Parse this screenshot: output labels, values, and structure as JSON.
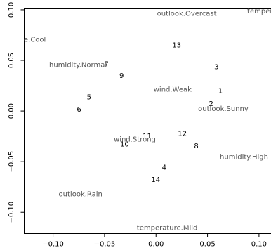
{
  "chart_data": {
    "type": "scatter",
    "xlim": [
      -0.128,
      0.112
    ],
    "ylim": [
      -0.121,
      0.101
    ],
    "x_ticks": [
      -0.1,
      -0.05,
      0.0,
      0.05,
      0.1
    ],
    "x_tick_labels": [
      "−0.10",
      "−0.05",
      "0.00",
      "0.05",
      "0.10"
    ],
    "y_ticks": [
      -0.1,
      -0.05,
      0.0,
      0.05,
      0.1
    ],
    "y_tick_labels": [
      "−0.10",
      "−0.05",
      "0.00",
      "0.05",
      "0.10"
    ],
    "grid": false,
    "series": [
      {
        "points": [
          {
            "label": "1",
            "x": 0.0625,
            "y": 0.0198
          },
          {
            "label": "2",
            "x": 0.0535,
            "y": 0.0071
          },
          {
            "label": "3",
            "x": 0.0587,
            "y": 0.0434
          },
          {
            "label": "4",
            "x": 0.0079,
            "y": -0.0557
          },
          {
            "label": "5",
            "x": -0.0651,
            "y": 0.0137
          },
          {
            "label": "6",
            "x": -0.0748,
            "y": 0.0014
          },
          {
            "label": "7",
            "x": -0.0482,
            "y": 0.0462
          },
          {
            "label": "8",
            "x": 0.0391,
            "y": -0.0347
          },
          {
            "label": "9",
            "x": -0.0334,
            "y": 0.0349
          },
          {
            "label": "10",
            "x": -0.0306,
            "y": -0.0329
          },
          {
            "label": "11",
            "x": -0.0087,
            "y": -0.0249
          },
          {
            "label": "12",
            "x": 0.0256,
            "y": -0.0226
          },
          {
            "label": "13",
            "x": 0.0201,
            "y": 0.0648
          },
          {
            "label": "14",
            "x": -0.0003,
            "y": -0.068
          }
        ]
      },
      {
        "points": [
          {
            "label": "outlook.Overcast",
            "x": 0.0299,
            "y": 0.0963
          },
          {
            "label": "temperature.Hot",
            "x": 0.117,
            "y": 0.0984
          },
          {
            "label": "temperature.Cool",
            "x": -0.137,
            "y": 0.0704
          },
          {
            "label": "humidity.Normal",
            "x": -0.0758,
            "y": 0.0454
          },
          {
            "label": "wind.Weak",
            "x": 0.0161,
            "y": 0.0213
          },
          {
            "label": "outlook.Sunny",
            "x": 0.0653,
            "y": 0.0021
          },
          {
            "label": "wind.Strong",
            "x": -0.0206,
            "y": -0.0282
          },
          {
            "label": "humidity.High",
            "x": 0.0854,
            "y": -0.0453
          },
          {
            "label": "outlook.Rain",
            "x": -0.0733,
            "y": -0.082
          },
          {
            "label": "temperature.Mild",
            "x": 0.0108,
            "y": -0.1155
          }
        ]
      }
    ]
  }
}
